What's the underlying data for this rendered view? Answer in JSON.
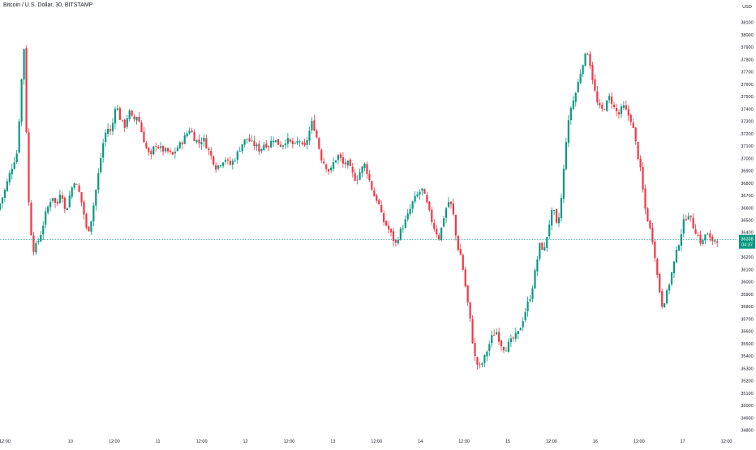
{
  "header": {
    "title": "Bitcoin / U.S. Dollar, 30, BITSTAMP"
  },
  "chart_data": {
    "type": "candlestick",
    "title": "Bitcoin / U.S. Dollar, 30, BITSTAMP",
    "currency": "USD",
    "y_axis": {
      "min": 34800,
      "max": 38200,
      "ticks": [
        34800,
        34900,
        35000,
        35100,
        35200,
        35300,
        35400,
        35500,
        35600,
        35700,
        35800,
        35900,
        36000,
        36100,
        36200,
        36300,
        36400,
        36500,
        36600,
        36700,
        36800,
        36900,
        37000,
        37100,
        37200,
        37300,
        37400,
        37500,
        37600,
        37700,
        37800,
        37900,
        38000,
        38100
      ]
    },
    "x_axis": {
      "labels": [
        "12:00",
        "10",
        "12:00",
        "11",
        "12:00",
        "12",
        "12:00",
        "13",
        "12:00",
        "14",
        "12:00",
        "15",
        "12:00",
        "16",
        "12:00",
        "17",
        "12:00"
      ],
      "positions": [
        0,
        3,
        5,
        7,
        9,
        11,
        13,
        15,
        17,
        19,
        21,
        23,
        25,
        27,
        29,
        31,
        33
      ]
    },
    "last_price": {
      "value": 36338,
      "label": "36338",
      "countdown": "04:37"
    },
    "colors": {
      "up": "#089981",
      "down": "#f23645",
      "text": "#131722",
      "axis_text": "#131722",
      "price_line": "#089981"
    },
    "path": [
      [
        0,
        36580
      ],
      [
        0.3,
        36720
      ],
      [
        0.6,
        36900
      ],
      [
        0.9,
        37050
      ],
      [
        1.05,
        37500
      ],
      [
        1.2,
        37930
      ],
      [
        1.32,
        37200
      ],
      [
        1.42,
        36650
      ],
      [
        1.6,
        36250
      ],
      [
        1.8,
        36300
      ],
      [
        2.0,
        36400
      ],
      [
        2.2,
        36550
      ],
      [
        2.5,
        36700
      ],
      [
        2.7,
        36600
      ],
      [
        2.9,
        36760
      ],
      [
        3.1,
        36550
      ],
      [
        3.3,
        36700
      ],
      [
        3.5,
        36820
      ],
      [
        3.7,
        36740
      ],
      [
        3.9,
        36600
      ],
      [
        4.1,
        36380
      ],
      [
        4.3,
        36520
      ],
      [
        4.55,
        36800
      ],
      [
        4.8,
        37100
      ],
      [
        5.0,
        37250
      ],
      [
        5.2,
        37200
      ],
      [
        5.4,
        37450
      ],
      [
        5.6,
        37320
      ],
      [
        5.8,
        37250
      ],
      [
        6.0,
        37380
      ],
      [
        6.2,
        37300
      ],
      [
        6.4,
        37350
      ],
      [
        6.6,
        37200
      ],
      [
        6.8,
        37080
      ],
      [
        7.0,
        37000
      ],
      [
        7.2,
        37120
      ],
      [
        7.4,
        37080
      ],
      [
        7.6,
        37060
      ],
      [
        7.8,
        37050
      ],
      [
        8.0,
        37020
      ],
      [
        8.2,
        37080
      ],
      [
        8.4,
        37120
      ],
      [
        8.6,
        37180
      ],
      [
        8.8,
        37240
      ],
      [
        9.0,
        37160
      ],
      [
        9.2,
        37120
      ],
      [
        9.4,
        37160
      ],
      [
        9.6,
        37080
      ],
      [
        9.8,
        37000
      ],
      [
        10.0,
        36920
      ],
      [
        10.2,
        36960
      ],
      [
        10.4,
        37000
      ],
      [
        10.6,
        36940
      ],
      [
        10.8,
        36980
      ],
      [
        11.0,
        37050
      ],
      [
        11.2,
        37120
      ],
      [
        11.4,
        37160
      ],
      [
        11.6,
        37120
      ],
      [
        11.8,
        37100
      ],
      [
        12.0,
        37060
      ],
      [
        12.2,
        37120
      ],
      [
        12.4,
        37100
      ],
      [
        12.6,
        37160
      ],
      [
        12.8,
        37120
      ],
      [
        13.0,
        37100
      ],
      [
        13.2,
        37150
      ],
      [
        13.4,
        37120
      ],
      [
        13.6,
        37100
      ],
      [
        13.8,
        37150
      ],
      [
        14.0,
        37060
      ],
      [
        14.2,
        37180
      ],
      [
        14.4,
        37300
      ],
      [
        14.6,
        37160
      ],
      [
        14.8,
        37000
      ],
      [
        15.0,
        36940
      ],
      [
        15.2,
        36880
      ],
      [
        15.4,
        36980
      ],
      [
        15.6,
        37020
      ],
      [
        15.8,
        36950
      ],
      [
        16.0,
        36960
      ],
      [
        16.2,
        36880
      ],
      [
        16.4,
        36820
      ],
      [
        16.6,
        36900
      ],
      [
        16.8,
        36950
      ],
      [
        17.0,
        36820
      ],
      [
        17.2,
        36700
      ],
      [
        17.4,
        36650
      ],
      [
        17.6,
        36500
      ],
      [
        17.8,
        36450
      ],
      [
        18.0,
        36380
      ],
      [
        18.2,
        36300
      ],
      [
        18.4,
        36400
      ],
      [
        18.6,
        36470
      ],
      [
        18.8,
        36550
      ],
      [
        19.0,
        36650
      ],
      [
        19.2,
        36700
      ],
      [
        19.4,
        36750
      ],
      [
        19.6,
        36650
      ],
      [
        19.8,
        36520
      ],
      [
        20.0,
        36420
      ],
      [
        20.2,
        36350
      ],
      [
        20.4,
        36520
      ],
      [
        20.6,
        36650
      ],
      [
        20.8,
        36600
      ],
      [
        21.0,
        36300
      ],
      [
        21.2,
        36200
      ],
      [
        21.4,
        35950
      ],
      [
        21.6,
        35700
      ],
      [
        21.8,
        35400
      ],
      [
        22.0,
        35300
      ],
      [
        22.2,
        35350
      ],
      [
        22.4,
        35450
      ],
      [
        22.6,
        35550
      ],
      [
        22.8,
        35600
      ],
      [
        23.0,
        35500
      ],
      [
        23.2,
        35450
      ],
      [
        23.4,
        35500
      ],
      [
        23.6,
        35540
      ],
      [
        23.8,
        35580
      ],
      [
        24.0,
        35680
      ],
      [
        24.2,
        35800
      ],
      [
        24.4,
        35900
      ],
      [
        24.6,
        36100
      ],
      [
        24.8,
        36300
      ],
      [
        25.0,
        36250
      ],
      [
        25.2,
        36450
      ],
      [
        25.4,
        36600
      ],
      [
        25.6,
        36420
      ],
      [
        25.8,
        36700
      ],
      [
        26.0,
        37150
      ],
      [
        26.2,
        37400
      ],
      [
        26.4,
        37500
      ],
      [
        26.6,
        37650
      ],
      [
        26.8,
        37800
      ],
      [
        27.0,
        37860
      ],
      [
        27.2,
        37650
      ],
      [
        27.4,
        37450
      ],
      [
        27.6,
        37380
      ],
      [
        27.8,
        37420
      ],
      [
        28.0,
        37500
      ],
      [
        28.2,
        37400
      ],
      [
        28.4,
        37350
      ],
      [
        28.6,
        37420
      ],
      [
        28.8,
        37360
      ],
      [
        29.0,
        37300
      ],
      [
        29.2,
        37100
      ],
      [
        29.4,
        36900
      ],
      [
        29.6,
        36600
      ],
      [
        29.8,
        36450
      ],
      [
        30.0,
        36300
      ],
      [
        30.2,
        36000
      ],
      [
        30.4,
        35800
      ],
      [
        30.6,
        35900
      ],
      [
        30.8,
        36050
      ],
      [
        31.0,
        36200
      ],
      [
        31.2,
        36350
      ],
      [
        31.4,
        36500
      ],
      [
        31.6,
        36550
      ],
      [
        31.8,
        36450
      ],
      [
        32.0,
        36380
      ],
      [
        32.2,
        36300
      ],
      [
        32.4,
        36400
      ],
      [
        32.6,
        36330
      ],
      [
        32.8,
        36338
      ]
    ]
  }
}
